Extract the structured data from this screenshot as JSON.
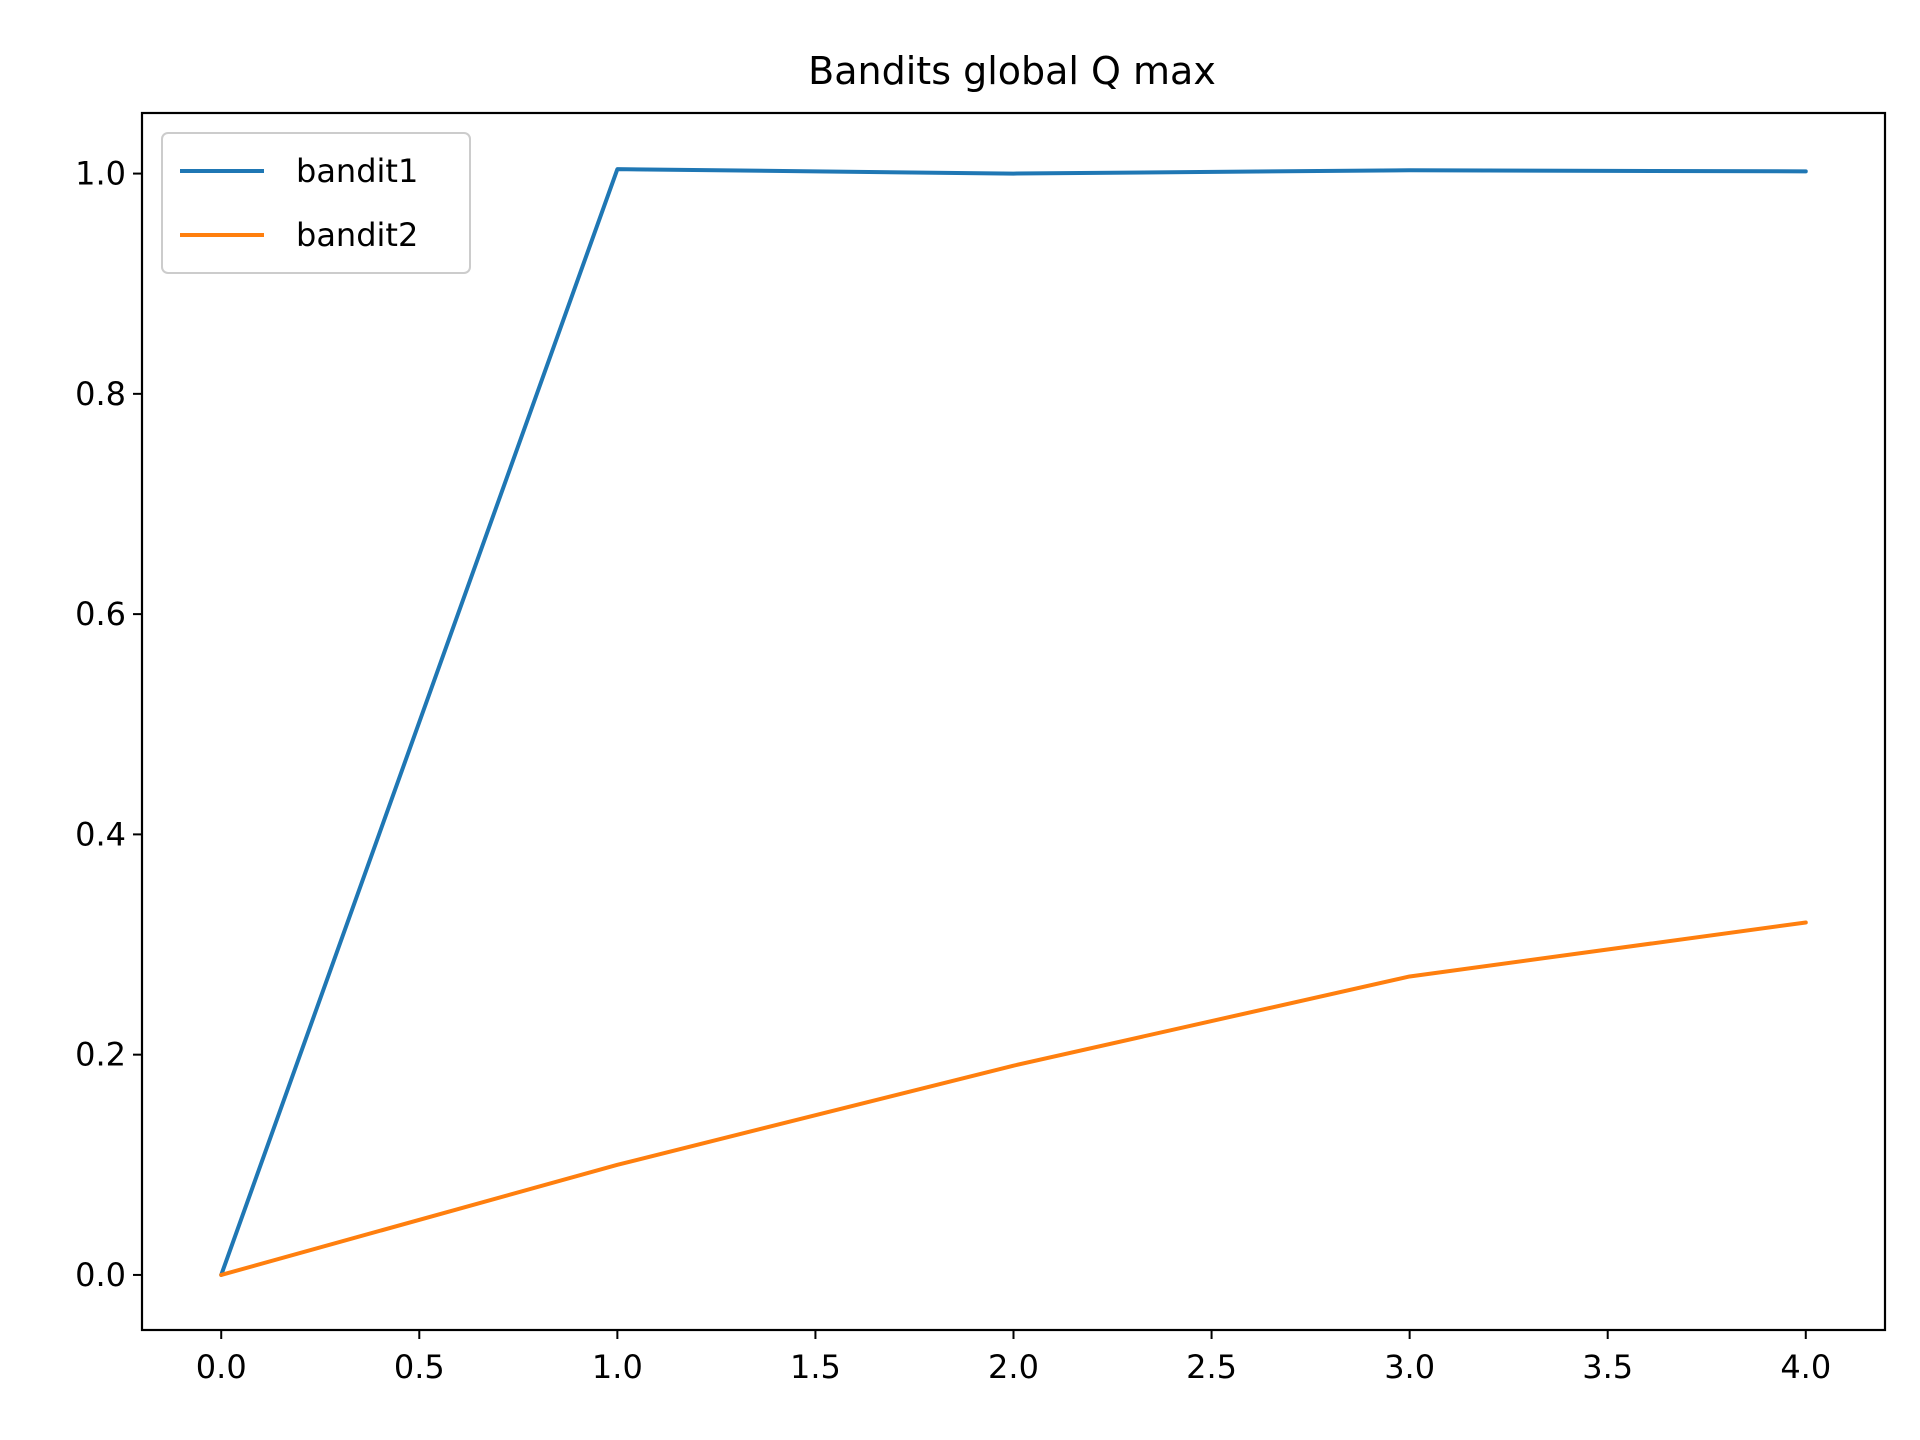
{
  "chart_data": {
    "type": "line",
    "title": "Bandits global Q max",
    "xlabel": "",
    "ylabel": "",
    "xlim": [
      -0.2,
      4.2
    ],
    "ylim": [
      -0.05,
      1.055
    ],
    "xticks": [
      "0.0",
      "0.5",
      "1.0",
      "1.5",
      "2.0",
      "2.5",
      "3.0",
      "3.5",
      "4.0"
    ],
    "yticks": [
      "0.0",
      "0.2",
      "0.4",
      "0.6",
      "0.8",
      "1.0"
    ],
    "x": [
      0,
      1,
      2,
      3,
      4
    ],
    "grid": false,
    "legend_position": "top-left",
    "series": [
      {
        "name": "bandit1",
        "color": "#1f77b4",
        "values": [
          0.0,
          1.004,
          1.0,
          1.003,
          1.002
        ]
      },
      {
        "name": "bandit2",
        "color": "#ff7f0e",
        "values": [
          0.0,
          0.1,
          0.19,
          0.271,
          0.32
        ]
      }
    ]
  }
}
